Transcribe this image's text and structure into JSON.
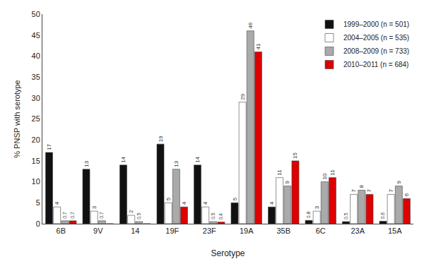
{
  "chart_data": {
    "type": "bar",
    "categories": [
      "6B",
      "9V",
      "14",
      "19F",
      "23F",
      "19A",
      "35B",
      "6C",
      "23A",
      "15A"
    ],
    "series": [
      {
        "name": "1999–2000 (n = 501)",
        "color": "#111111",
        "values": [
          17,
          13,
          14,
          19,
          14,
          5,
          4,
          0.8,
          0.5,
          0.6
        ]
      },
      {
        "name": "2004–2005 (n = 535)",
        "color": "#ffffff",
        "values": [
          4,
          3,
          2,
          5,
          4,
          29,
          11,
          3,
          7,
          7
        ]
      },
      {
        "name": "2008–2009 (n = 733)",
        "color": "#aaaaaa",
        "values": [
          0.7,
          0.7,
          0.5,
          13,
          0.5,
          46,
          9,
          10,
          8,
          9
        ]
      },
      {
        "name": "2010–2011 (n = 684)",
        "color": "#dd0000",
        "values": [
          0.7,
          0,
          0,
          4,
          0.4,
          41,
          15,
          11,
          7,
          6
        ],
        "value_labels": [
          "0.7",
          null,
          null,
          "4",
          "0.4",
          "41",
          "15",
          "11",
          "7",
          "6"
        ]
      }
    ],
    "xlabel": "Serotype",
    "ylabel": "% PNSP with serotype",
    "ylim": [
      0,
      50
    ],
    "yticks": [
      0,
      5,
      10,
      15,
      20,
      25,
      30,
      35,
      40,
      45,
      50
    ],
    "grid": false,
    "legend": "upper right",
    "data_labels": true
  }
}
